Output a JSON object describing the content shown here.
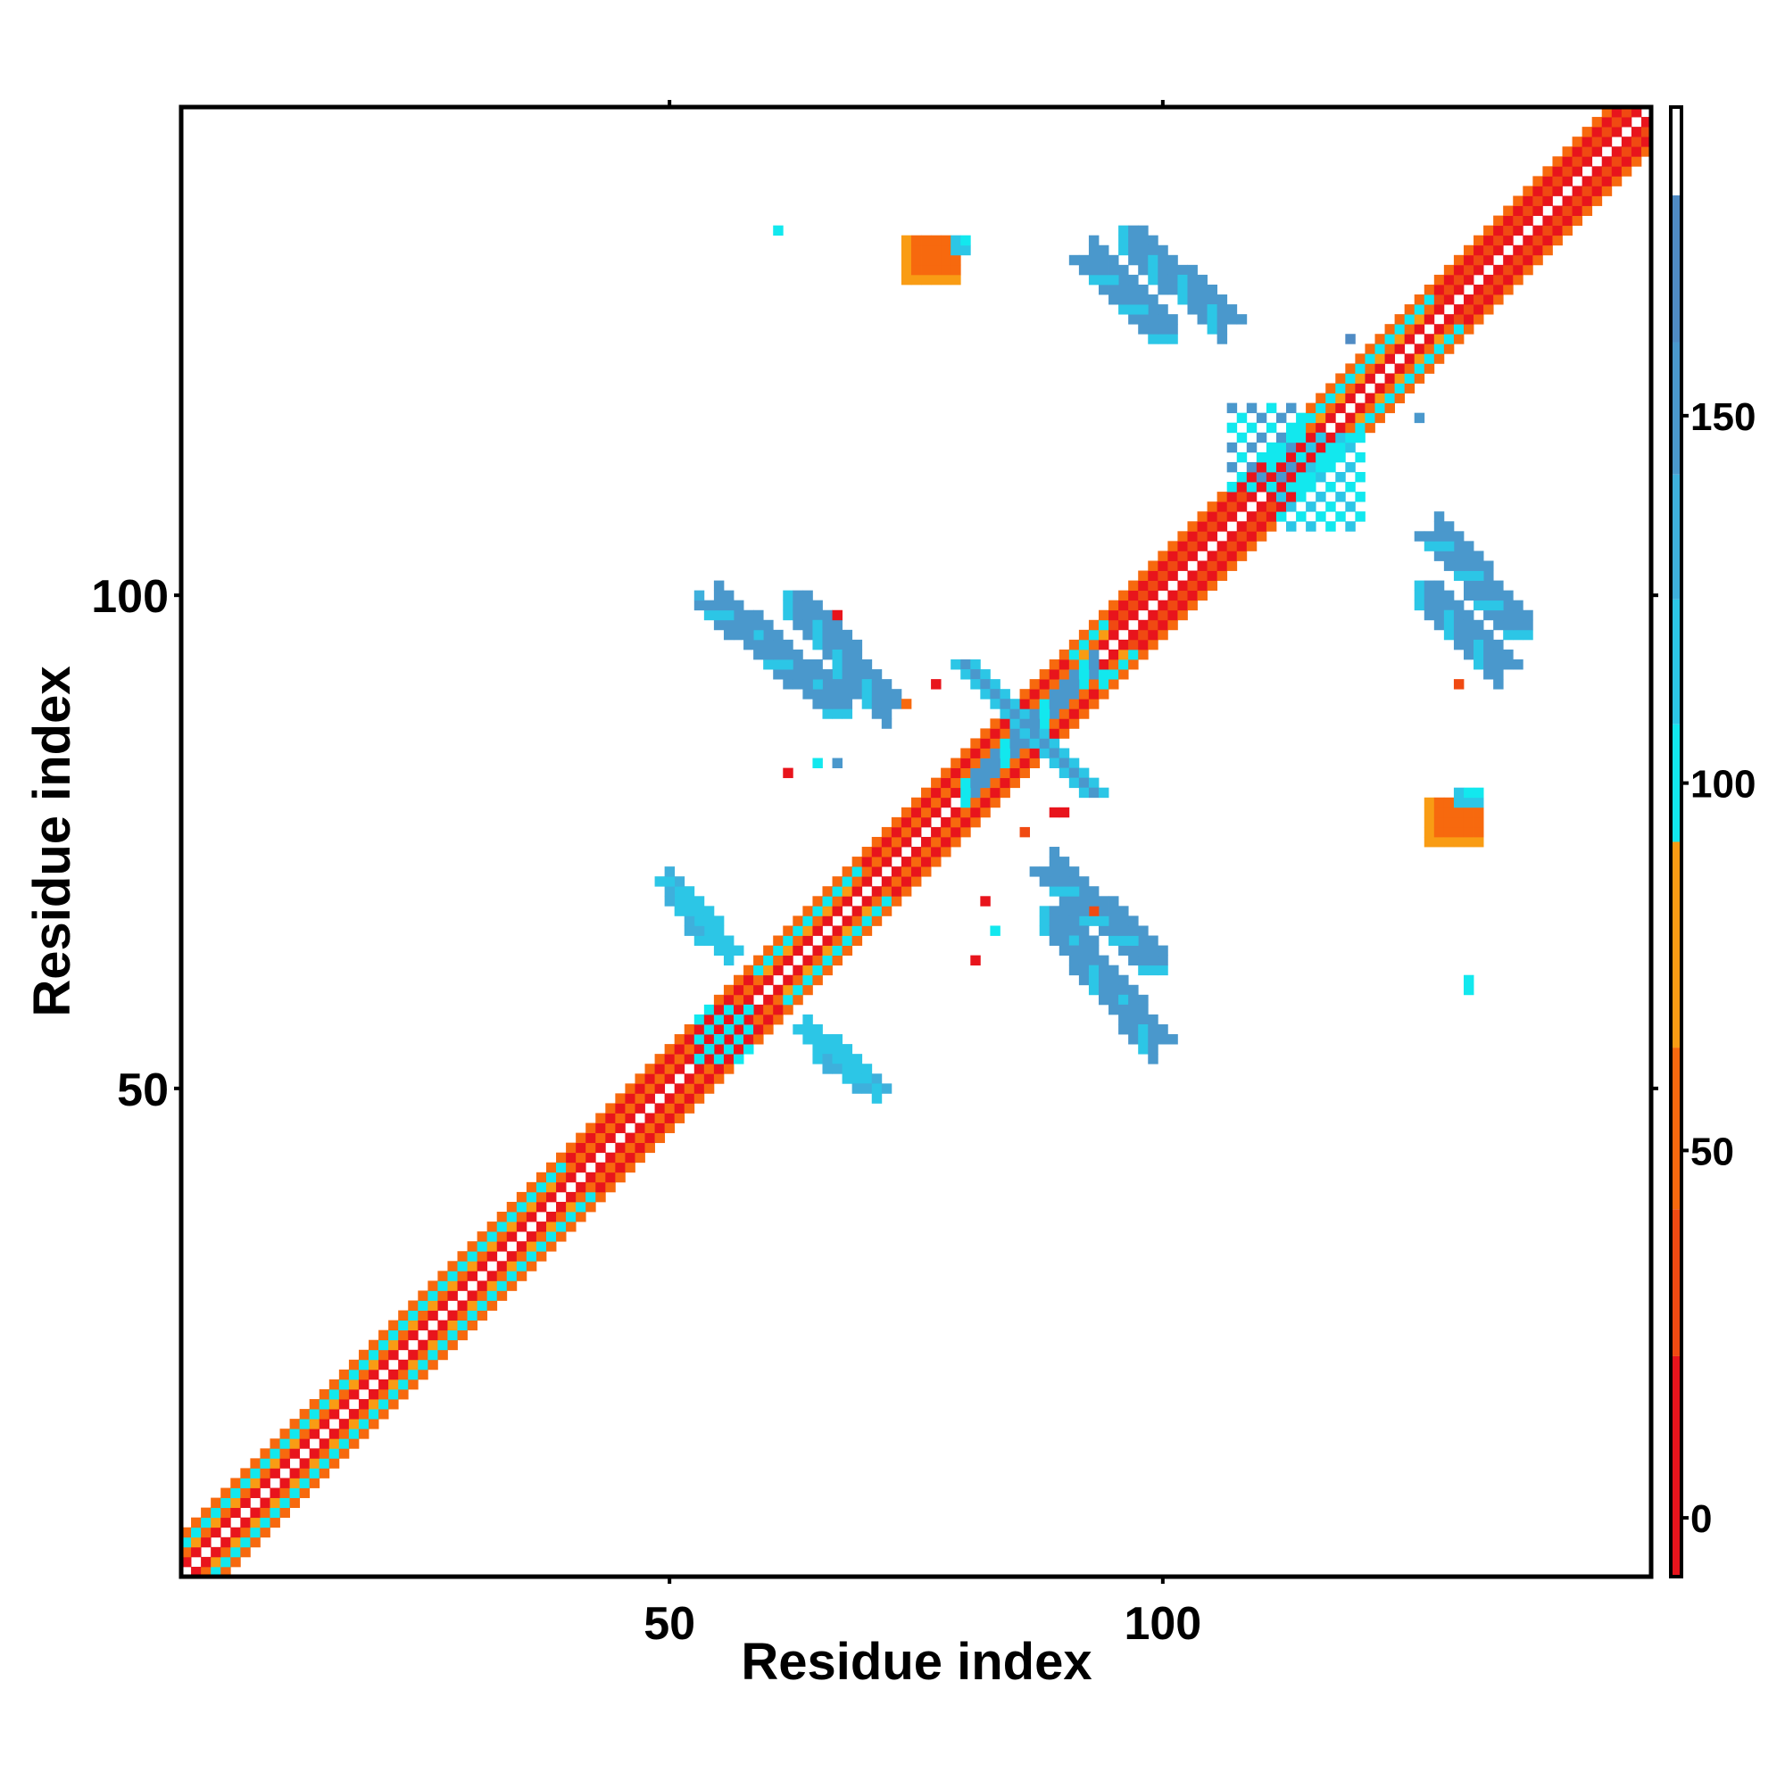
{
  "chart_data": {
    "type": "heatmap",
    "title": "",
    "xlabel": "Residue index",
    "ylabel": "Residue index",
    "xlim": [
      1,
      149
    ],
    "ylim": [
      1,
      149
    ],
    "xticks": [
      50,
      100
    ],
    "yticks": [
      50,
      100
    ],
    "grid": false,
    "colorbar": {
      "position": "right",
      "ticks": [
        0,
        50,
        100,
        150
      ],
      "range": [
        -8,
        192
      ],
      "stops": [
        {
          "from": -8,
          "to": 22,
          "color": "#e8141c"
        },
        {
          "from": 22,
          "to": 42,
          "color": "#f04a12"
        },
        {
          "from": 42,
          "to": 64,
          "color": "#f7690e"
        },
        {
          "from": 64,
          "to": 92,
          "color": "#f99c14"
        },
        {
          "from": 92,
          "to": 108,
          "color": "#12e8ee"
        },
        {
          "from": 108,
          "to": 125,
          "color": "#2cc6e6"
        },
        {
          "from": 125,
          "to": 142,
          "color": "#3eb0dc"
        },
        {
          "from": 142,
          "to": 160,
          "color": "#4a98cc"
        },
        {
          "from": 160,
          "to": 180,
          "color": "#4f8bc4"
        },
        {
          "from": 180,
          "to": 192,
          "color": "#ffffff"
        }
      ]
    },
    "diagonal_band": {
      "from": 1,
      "to": 149,
      "pattern": [
        {
          "offset": 1,
          "value": 5
        },
        {
          "offset": 2,
          "value": 55
        },
        {
          "offset": 3,
          "value": 100
        },
        {
          "offset": 4,
          "value": 60
        }
      ]
    },
    "helix_segments": [
      {
        "from": 40,
        "to": 58,
        "values": {
          "2": 55,
          "3": 15,
          "4": 50
        }
      },
      {
        "from": 70,
        "to": 90,
        "values": {
          "2": 45,
          "3": 10,
          "4": 55
        }
      },
      {
        "from": 95,
        "to": 110,
        "values": {
          "2": 30,
          "3": 5,
          "4": 45
        }
      },
      {
        "from": 128,
        "to": 149,
        "values": {
          "2": 35,
          "3": 8,
          "4": 50
        }
      }
    ],
    "contact_blocks": [
      {
        "name": "helix-pair-a",
        "x": [
          62,
          72
        ],
        "y": [
          89,
          100
        ],
        "direction": "anti",
        "width": 3,
        "value": 150
      },
      {
        "name": "helix-pair-b",
        "x": [
          88,
          99
        ],
        "y": [
          55,
          68
        ],
        "direction": "anti",
        "width": 3,
        "value": 148
      },
      {
        "name": "helix-pair-c",
        "x": [
          96,
          106
        ],
        "y": [
          128,
          137
        ],
        "direction": "anti",
        "width": 3,
        "value": 152
      },
      {
        "name": "helix-pair-d",
        "x": [
          126,
          134
        ],
        "y": [
          93,
          101
        ],
        "direction": "anti",
        "width": 3,
        "value": 150
      },
      {
        "name": "helix-pair-e",
        "x": [
          65,
          71
        ],
        "y": [
          50,
          54
        ],
        "direction": "anti",
        "width": 2,
        "value": 140
      },
      {
        "name": "helix-pair-f",
        "x": [
          51,
          56
        ],
        "y": [
          64,
          70
        ],
        "direction": "anti",
        "width": 2,
        "value": 120
      },
      {
        "name": "cross-block",
        "x": [
          80,
          93
        ],
        "y": [
          80,
          93
        ],
        "direction": "cross",
        "width": 3,
        "value": 150
      },
      {
        "name": "side-block-a",
        "x": [
          53,
          58
        ],
        "y": [
          53,
          58
        ],
        "direction": "square",
        "width": 3,
        "value": 105
      },
      {
        "name": "side-block-b",
        "x": [
          112,
          120
        ],
        "y": [
          107,
          116
        ],
        "direction": "square",
        "width": 3,
        "value": 120
      },
      {
        "name": "side-block-c",
        "x": [
          107,
          114
        ],
        "y": [
          111,
          119
        ],
        "direction": "square",
        "width": 3,
        "value": 150
      }
    ],
    "patches": [
      {
        "name": "orange-patch-a",
        "x": [
          74,
          79
        ],
        "y": [
          132,
          136
        ],
        "value": 50
      },
      {
        "name": "orange-patch-b",
        "x": [
          127,
          132
        ],
        "y": [
          75,
          79
        ],
        "value": 48
      },
      {
        "name": "cyan-patch-a",
        "x": [
          130,
          132
        ],
        "y": [
          79,
          80
        ],
        "value": 102
      },
      {
        "name": "cyan-patch-b",
        "x": [
          79,
          80
        ],
        "y": [
          135,
          136
        ],
        "value": 100
      }
    ],
    "scatter": [
      {
        "x": 61,
        "y": 137,
        "value": 100
      },
      {
        "x": 119,
        "y": 126,
        "value": 160
      },
      {
        "x": 126,
        "y": 118,
        "value": 150
      },
      {
        "x": 53,
        "y": 100,
        "value": 140
      },
      {
        "x": 67,
        "y": 98,
        "value": 10
      },
      {
        "x": 74,
        "y": 89,
        "value": 50
      },
      {
        "x": 62,
        "y": 82,
        "value": 5
      },
      {
        "x": 65,
        "y": 83,
        "value": 100
      },
      {
        "x": 67,
        "y": 83,
        "value": 150
      },
      {
        "x": 77,
        "y": 91,
        "value": 5
      },
      {
        "x": 86,
        "y": 76,
        "value": 30
      },
      {
        "x": 89,
        "y": 78,
        "value": 5
      },
      {
        "x": 90,
        "y": 78,
        "value": 10
      },
      {
        "x": 82,
        "y": 69,
        "value": 20
      },
      {
        "x": 83,
        "y": 66,
        "value": 100
      },
      {
        "x": 81,
        "y": 63,
        "value": 5
      },
      {
        "x": 93,
        "y": 68,
        "value": 30
      },
      {
        "x": 99,
        "y": 54,
        "value": 150
      },
      {
        "x": 131,
        "y": 60,
        "value": 100
      },
      {
        "x": 131,
        "y": 61,
        "value": 100
      },
      {
        "x": 130,
        "y": 91,
        "value": 30
      },
      {
        "x": 94,
        "y": 92,
        "value": 100
      },
      {
        "x": 95,
        "y": 92,
        "value": 100
      }
    ]
  }
}
